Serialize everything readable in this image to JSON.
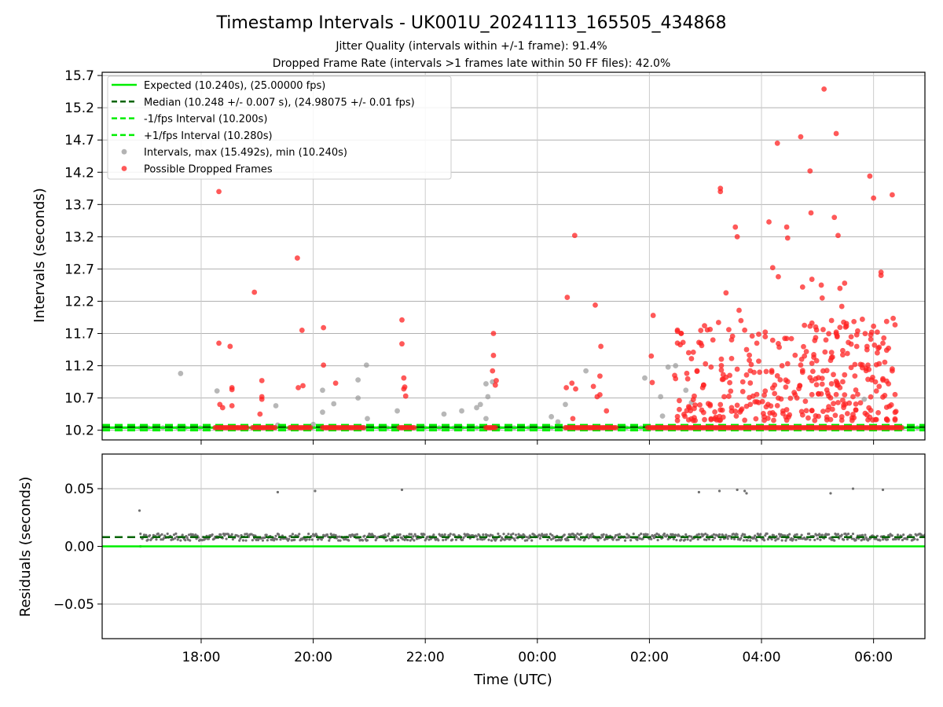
{
  "chart_data": [
    {
      "type": "scatter",
      "title": "Timestamp Intervals - UK001U_20241113_165505_434868",
      "subtitles": [
        "Jitter Quality (intervals within +/-1 frame): 91.4%",
        "Dropped Frame Rate (intervals >1 frames late within 50 FF files): 42.0%"
      ],
      "xlabel": "",
      "ylabel": "Intervals (seconds)",
      "x_range": [
        "2024-11-13T16:14",
        "2024-11-14T06:55"
      ],
      "ylim": [
        10.05,
        15.75
      ],
      "y_ticks": [
        10.2,
        10.7,
        11.2,
        11.7,
        12.2,
        12.7,
        13.2,
        13.7,
        14.2,
        14.7,
        15.2,
        15.7
      ],
      "y_tick_labels": [
        "10.2",
        "10.7",
        "11.2",
        "11.7",
        "12.2",
        "12.7",
        "13.2",
        "13.7",
        "14.2",
        "14.7",
        "15.2",
        "15.7"
      ],
      "grid": true,
      "legend_position": "top-left",
      "legend": [
        "Expected (10.240s), (25.00000 fps)",
        "Median (10.248 +/- 0.007 s), (24.98075 +/- 0.01 fps)",
        "-1/fps Interval (10.200s)",
        "+1/fps Interval (10.280s)",
        "Intervals, max (15.492s), min (10.240s)",
        "Possible Dropped Frames"
      ],
      "reference_lines": {
        "expected": 10.24,
        "median": 10.248,
        "minus_one_fps": 10.2,
        "plus_one_fps": 10.28
      },
      "colors": {
        "expected": "#00ee00",
        "median": "#006400",
        "fps_bounds": "#00ee00",
        "intervals": "#999999",
        "dropped": "#ff2222"
      },
      "series": [
        {
          "name": "Intervals, max (15.492s), min (10.240s)",
          "points": [
            [
              "2024-11-13T17:38",
              11.08
            ],
            [
              "2024-11-13T18:17",
              10.81
            ],
            [
              "2024-11-13T19:20",
              10.58
            ],
            [
              "2024-11-13T19:22",
              10.28
            ],
            [
              "2024-11-13T20:00",
              10.29
            ],
            [
              "2024-11-13T20:10",
              10.82
            ],
            [
              "2024-11-13T20:10",
              10.48
            ],
            [
              "2024-11-13T20:22",
              10.61
            ],
            [
              "2024-11-13T20:48",
              10.98
            ],
            [
              "2024-11-13T20:48",
              10.7
            ],
            [
              "2024-11-13T20:57",
              11.21
            ],
            [
              "2024-11-13T20:58",
              10.38
            ],
            [
              "2024-11-13T21:30",
              10.5
            ],
            [
              "2024-11-13T22:20",
              10.45
            ],
            [
              "2024-11-13T22:39",
              10.5
            ],
            [
              "2024-11-13T22:55",
              10.55
            ],
            [
              "2024-11-13T22:59",
              10.6
            ],
            [
              "2024-11-13T23:05",
              10.92
            ],
            [
              "2024-11-13T23:12",
              10.95
            ],
            [
              "2024-11-13T23:05",
              10.38
            ],
            [
              "2024-11-13T23:07",
              10.72
            ],
            [
              "2024-11-14T00:15",
              10.41
            ],
            [
              "2024-11-14T00:22",
              10.33
            ],
            [
              "2024-11-14T00:30",
              10.6
            ],
            [
              "2024-11-14T00:52",
              11.12
            ],
            [
              "2024-11-14T01:55",
              11.01
            ],
            [
              "2024-11-14T02:12",
              10.72
            ],
            [
              "2024-11-14T02:14",
              10.42
            ],
            [
              "2024-11-14T02:20",
              11.18
            ],
            [
              "2024-11-14T02:28",
              11.2
            ],
            [
              "2024-11-14T02:39",
              10.82
            ],
            [
              "2024-11-14T02:45",
              10.63
            ],
            [
              "2024-11-14T05:50",
              10.68
            ]
          ]
        },
        {
          "name": "Possible Dropped Frames",
          "points": [
            [
              "2024-11-13T18:19",
              13.9
            ],
            [
              "2024-11-13T18:19",
              11.55
            ],
            [
              "2024-11-13T18:20",
              10.6
            ],
            [
              "2024-11-13T18:23",
              10.55
            ],
            [
              "2024-11-13T18:31",
              11.5
            ],
            [
              "2024-11-13T18:33",
              10.86
            ],
            [
              "2024-11-13T18:33",
              10.83
            ],
            [
              "2024-11-13T18:33",
              10.58
            ],
            [
              "2024-11-13T18:57",
              12.34
            ],
            [
              "2024-11-13T19:05",
              10.97
            ],
            [
              "2024-11-13T19:05",
              10.72
            ],
            [
              "2024-11-13T19:05",
              10.68
            ],
            [
              "2024-11-13T19:03",
              10.45
            ],
            [
              "2024-11-13T19:43",
              12.87
            ],
            [
              "2024-11-13T19:48",
              11.75
            ],
            [
              "2024-11-13T19:44",
              10.86
            ],
            [
              "2024-11-13T19:49",
              10.89
            ],
            [
              "2024-11-13T20:11",
              11.79
            ],
            [
              "2024-11-13T20:11",
              11.21
            ],
            [
              "2024-11-13T20:24",
              10.93
            ],
            [
              "2024-11-13T21:35",
              11.91
            ],
            [
              "2024-11-13T21:35",
              11.54
            ],
            [
              "2024-11-13T21:37",
              11.01
            ],
            [
              "2024-11-13T21:37",
              10.84
            ],
            [
              "2024-11-13T21:38",
              10.87
            ],
            [
              "2024-11-13T21:39",
              10.73
            ],
            [
              "2024-11-13T23:13",
              11.7
            ],
            [
              "2024-11-13T23:13",
              11.36
            ],
            [
              "2024-11-13T23:12",
              11.12
            ],
            [
              "2024-11-13T23:16",
              10.97
            ],
            [
              "2024-11-13T23:15",
              10.9
            ],
            [
              "2024-11-14T00:32",
              12.26
            ],
            [
              "2024-11-14T00:31",
              10.86
            ],
            [
              "2024-11-14T00:37",
              10.93
            ],
            [
              "2024-11-14T00:41",
              10.84
            ],
            [
              "2024-11-14T00:38",
              10.38
            ],
            [
              "2024-11-14T00:40",
              13.22
            ],
            [
              "2024-11-14T01:02",
              12.14
            ],
            [
              "2024-11-14T01:00",
              10.88
            ],
            [
              "2024-11-14T01:04",
              10.72
            ],
            [
              "2024-11-14T01:08",
              11.5
            ],
            [
              "2024-11-14T01:07",
              11.04
            ],
            [
              "2024-11-14T01:07",
              10.75
            ],
            [
              "2024-11-14T01:14",
              10.5
            ],
            [
              "2024-11-14T02:04",
              11.98
            ],
            [
              "2024-11-14T02:02",
              11.35
            ],
            [
              "2024-11-14T02:03",
              10.94
            ],
            [
              "2024-11-14T02:27",
              11.05
            ],
            [
              "2024-11-14T02:28",
              11.0
            ],
            [
              "2024-11-14T02:32",
              10.66
            ],
            [
              "2024-11-14T02:34",
              11.7
            ],
            [
              "2024-11-14T02:55",
              11.55
            ],
            [
              "2024-11-14T02:58",
              10.9
            ],
            [
              "2024-11-14T03:06",
              11.18
            ],
            [
              "2024-11-14T03:08",
              11.6
            ],
            [
              "2024-11-14T03:05",
              10.6
            ],
            [
              "2024-11-14T03:16",
              13.9
            ],
            [
              "2024-11-14T03:16",
              13.95
            ],
            [
              "2024-11-14T03:20",
              10.72
            ],
            [
              "2024-11-14T03:22",
              12.33
            ],
            [
              "2024-11-14T03:26",
              11.05
            ],
            [
              "2024-11-14T03:28",
              10.55
            ],
            [
              "2024-11-14T03:32",
              13.35
            ],
            [
              "2024-11-14T03:34",
              13.2
            ],
            [
              "2024-11-14T03:36",
              12.06
            ],
            [
              "2024-11-14T03:38",
              11.9
            ],
            [
              "2024-11-14T03:40",
              10.8
            ],
            [
              "2024-11-14T03:44",
              11.45
            ],
            [
              "2024-11-14T03:48",
              10.6
            ],
            [
              "2024-11-14T03:55",
              11.55
            ],
            [
              "2024-11-14T03:58",
              11.1
            ],
            [
              "2024-11-14T04:04",
              11.65
            ],
            [
              "2024-11-14T04:08",
              13.43
            ],
            [
              "2024-11-14T04:12",
              12.72
            ],
            [
              "2024-11-14T04:14",
              10.9
            ],
            [
              "2024-11-14T04:17",
              14.65
            ],
            [
              "2024-11-14T04:18",
              12.58
            ],
            [
              "2024-11-14T04:22",
              11.2
            ],
            [
              "2024-11-14T04:27",
              13.35
            ],
            [
              "2024-11-14T04:28",
              13.18
            ],
            [
              "2024-11-14T04:32",
              11.62
            ],
            [
              "2024-11-14T04:36",
              10.75
            ],
            [
              "2024-11-14T04:42",
              14.75
            ],
            [
              "2024-11-14T04:44",
              12.42
            ],
            [
              "2024-11-14T04:46",
              11.35
            ],
            [
              "2024-11-14T04:52",
              14.22
            ],
            [
              "2024-11-14T04:53",
              13.57
            ],
            [
              "2024-11-14T04:54",
              12.54
            ],
            [
              "2024-11-14T04:58",
              11.8
            ],
            [
              "2024-11-14T05:04",
              12.45
            ],
            [
              "2024-11-14T05:05",
              12.25
            ],
            [
              "2024-11-14T05:07",
              15.49
            ],
            [
              "2024-11-14T05:09",
              11.6
            ],
            [
              "2024-11-14T05:15",
              10.92
            ],
            [
              "2024-11-14T05:18",
              13.5
            ],
            [
              "2024-11-14T05:20",
              14.8
            ],
            [
              "2024-11-14T05:22",
              13.22
            ],
            [
              "2024-11-14T05:24",
              12.4
            ],
            [
              "2024-11-14T05:26",
              12.12
            ],
            [
              "2024-11-14T05:29",
              12.48
            ],
            [
              "2024-11-14T05:30",
              11.8
            ],
            [
              "2024-11-14T05:34",
              10.62
            ],
            [
              "2024-11-14T05:38",
              10.72
            ],
            [
              "2024-11-14T05:42",
              11.68
            ],
            [
              "2024-11-14T05:46",
              11.22
            ],
            [
              "2024-11-14T05:56",
              14.14
            ],
            [
              "2024-11-14T06:00",
              13.8
            ],
            [
              "2024-11-14T06:02",
              10.95
            ],
            [
              "2024-11-14T06:08",
              12.65
            ],
            [
              "2024-11-14T06:08",
              12.6
            ],
            [
              "2024-11-14T06:10",
              11.55
            ],
            [
              "2024-11-14T06:12",
              10.74
            ],
            [
              "2024-11-14T06:16",
              10.92
            ],
            [
              "2024-11-14T06:20",
              13.85
            ],
            [
              "2024-11-14T06:20",
              11.12
            ]
          ],
          "dense_band": {
            "value": 10.24,
            "description": "Dense run of dropped-frame points at the expected interval",
            "ranges": [
              [
                "2024-11-13T18:15",
                "2024-11-13T18:50"
              ],
              [
                "2024-11-13T18:55",
                "2024-11-13T19:20"
              ],
              [
                "2024-11-13T19:35",
                "2024-11-13T19:58"
              ],
              [
                "2024-11-13T20:10",
                "2024-11-13T20:55"
              ],
              [
                "2024-11-13T21:32",
                "2024-11-13T21:48"
              ],
              [
                "2024-11-13T23:05",
                "2024-11-13T23:15"
              ],
              [
                "2024-11-14T00:30",
                "2024-11-14T01:00"
              ],
              [
                "2024-11-14T01:00",
                "2024-11-14T01:25"
              ],
              [
                "2024-11-14T01:58",
                "2024-11-14T06:30"
              ]
            ]
          }
        }
      ]
    },
    {
      "type": "scatter",
      "title": "",
      "xlabel": "Time (UTC)",
      "ylabel": "Residuals (seconds)",
      "x_range": [
        "2024-11-13T16:14",
        "2024-11-14T06:55"
      ],
      "ylim": [
        -0.08,
        0.08
      ],
      "y_ticks": [
        -0.05,
        0.0,
        0.05
      ],
      "y_tick_labels": [
        "−0.05",
        "0.00",
        "0.05"
      ],
      "x_ticks": [
        "2024-11-13T18:00",
        "2024-11-13T20:00",
        "2024-11-13T22:00",
        "2024-11-14T00:00",
        "2024-11-14T02:00",
        "2024-11-14T04:00",
        "2024-11-14T06:00"
      ],
      "x_tick_labels": [
        "18:00",
        "20:00",
        "22:00",
        "00:00",
        "02:00",
        "04:00",
        "06:00"
      ],
      "grid": true,
      "reference_lines": {
        "zero": 0.0,
        "median": 0.008
      },
      "colors": {
        "zero": "#00ee00",
        "median": "#006400",
        "residuals": "#707070"
      },
      "residual_band": {
        "center": 0.008,
        "spread": 0.003,
        "from": "2024-11-13T16:55",
        "to": "2024-11-14T06:55"
      },
      "outliers": [
        [
          "2024-11-13T16:54",
          0.031
        ],
        [
          "2024-11-13T16:55",
          0.0
        ],
        [
          "2024-11-13T19:22",
          0.047
        ],
        [
          "2024-11-13T20:02",
          0.048
        ],
        [
          "2024-11-13T21:35",
          0.049
        ],
        [
          "2024-11-14T02:53",
          0.047
        ],
        [
          "2024-11-14T03:15",
          0.048
        ],
        [
          "2024-11-14T03:34",
          0.049
        ],
        [
          "2024-11-14T03:42",
          0.048
        ],
        [
          "2024-11-14T03:44",
          0.046
        ],
        [
          "2024-11-14T05:14",
          0.046
        ],
        [
          "2024-11-14T05:38",
          0.05
        ],
        [
          "2024-11-14T06:10",
          0.049
        ]
      ]
    }
  ]
}
